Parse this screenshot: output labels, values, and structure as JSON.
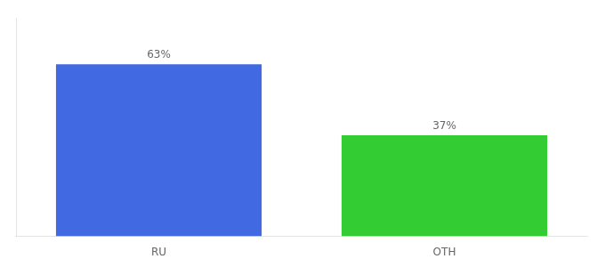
{
  "chart_data": {
    "type": "bar",
    "categories": [
      "RU",
      "OTH"
    ],
    "values": [
      63,
      37
    ],
    "value_labels": [
      "63%",
      "37%"
    ],
    "data_labels": true,
    "colors": [
      "#4169e1",
      "#33cc33"
    ],
    "ylim": [
      0,
      80
    ],
    "tick_labels": "x",
    "grid": false
  }
}
